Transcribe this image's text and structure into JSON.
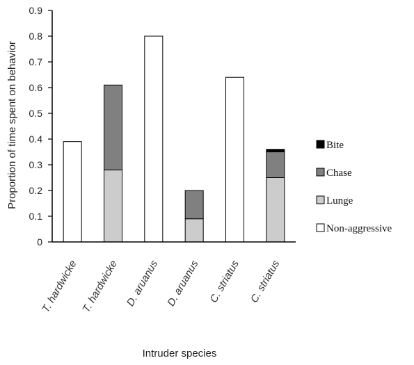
{
  "chart_data": {
    "type": "bar",
    "stacked": true,
    "ylabel": "Proportion of time spent on behavior",
    "xlabel": "Intruder species",
    "ylim": [
      0,
      0.9
    ],
    "yticks": [
      "0",
      "0.1",
      "0.2",
      "0.3",
      "0.4",
      "0.5",
      "0.6",
      "0.7",
      "0.8",
      "0.9"
    ],
    "categories": [
      "T. hardwicke",
      "T. hardwicke",
      "D. aruanus",
      "D. aruanus",
      "C. striatus",
      "C. striatus"
    ],
    "series": [
      {
        "name": "Non-aggressive",
        "color": "#ffffff",
        "values": [
          0.39,
          0,
          0.8,
          0,
          0.64,
          0
        ]
      },
      {
        "name": "Lunge",
        "color": "#cccccc",
        "values": [
          0,
          0.28,
          0,
          0.09,
          0,
          0.25
        ]
      },
      {
        "name": "Chase",
        "color": "#808080",
        "values": [
          0,
          0.33,
          0,
          0.11,
          0,
          0.1
        ]
      },
      {
        "name": "Bite",
        "color": "#000000",
        "values": [
          0,
          0,
          0,
          0,
          0,
          0.01
        ]
      }
    ],
    "legend": {
      "position": "right",
      "order": [
        "Bite",
        "Chase",
        "Lunge",
        "Non-aggressive"
      ]
    },
    "grid": false
  }
}
